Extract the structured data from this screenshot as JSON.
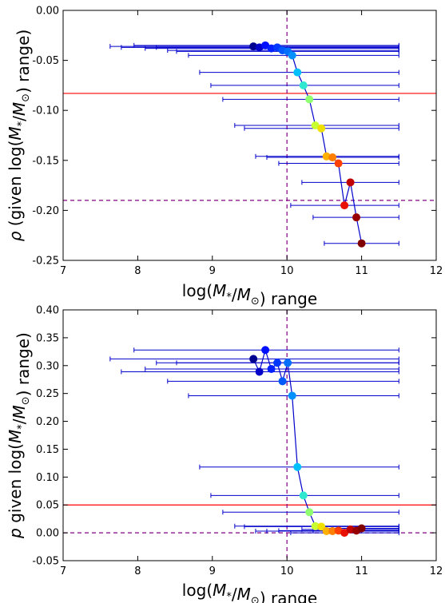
{
  "chart_data": [
    {
      "type": "scatter",
      "xlabel": "log(M_*/M_⊙) range",
      "ylabel": "ρ (given log(M_*/M_⊙) range)",
      "xlim": [
        7,
        12
      ],
      "ylim": [
        -0.25,
        0.0
      ],
      "xticks": [
        "7",
        "8",
        "9",
        "10",
        "11",
        "12"
      ],
      "yticks": [
        "0.00",
        "-0.05",
        "-0.10",
        "-0.15",
        "-0.20",
        "-0.25"
      ],
      "reference_lines": {
        "red_horizontal": -0.083,
        "dashed_horizontal": -0.19,
        "dashed_vertical": 10.0
      },
      "error_bar_upper_x": 11.5,
      "points": [
        {
          "x": 9.55,
          "y": -0.036,
          "xmin": 7.63,
          "color": "#000090"
        },
        {
          "x": 9.63,
          "y": -0.037,
          "xmin": 7.78,
          "color": "#0000c8"
        },
        {
          "x": 9.71,
          "y": -0.035,
          "xmin": 7.95,
          "color": "#0010ff"
        },
        {
          "x": 9.79,
          "y": -0.038,
          "xmin": 8.1,
          "color": "#0020ff"
        },
        {
          "x": 9.87,
          "y": -0.037,
          "xmin": 8.25,
          "color": "#0038ff"
        },
        {
          "x": 9.94,
          "y": -0.04,
          "xmin": 8.4,
          "color": "#0058ff"
        },
        {
          "x": 10.01,
          "y": -0.041,
          "xmin": 8.52,
          "color": "#0070ff"
        },
        {
          "x": 10.07,
          "y": -0.045,
          "xmin": 8.68,
          "color": "#0090ff"
        },
        {
          "x": 10.14,
          "y": -0.062,
          "xmin": 8.83,
          "color": "#00c0ff"
        },
        {
          "x": 10.22,
          "y": -0.075,
          "xmin": 8.98,
          "color": "#30e8d0"
        },
        {
          "x": 10.3,
          "y": -0.089,
          "xmin": 9.14,
          "color": "#90ff70"
        },
        {
          "x": 10.38,
          "y": -0.115,
          "xmin": 9.3,
          "color": "#c8ff30"
        },
        {
          "x": 10.46,
          "y": -0.118,
          "xmin": 9.43,
          "color": "#f0e000"
        },
        {
          "x": 10.53,
          "y": -0.146,
          "xmin": 9.58,
          "color": "#ffb000"
        },
        {
          "x": 10.61,
          "y": -0.147,
          "xmin": 9.73,
          "color": "#ff8000"
        },
        {
          "x": 10.69,
          "y": -0.153,
          "xmin": 9.89,
          "color": "#ff4000"
        },
        {
          "x": 10.77,
          "y": -0.195,
          "xmin": 10.05,
          "color": "#e81000"
        },
        {
          "x": 10.85,
          "y": -0.172,
          "xmin": 10.2,
          "color": "#c00000"
        },
        {
          "x": 10.93,
          "y": -0.207,
          "xmin": 10.35,
          "color": "#980000"
        },
        {
          "x": 11.0,
          "y": -0.233,
          "xmin": 10.5,
          "color": "#800000"
        }
      ]
    },
    {
      "type": "scatter",
      "xlabel": "log(M_*/M_⊙) range",
      "ylabel": "p given log(M_*/M_⊙) range)",
      "xlim": [
        7,
        12
      ],
      "ylim": [
        -0.05,
        0.4
      ],
      "xticks": [
        "7",
        "8",
        "9",
        "10",
        "11",
        "12"
      ],
      "yticks": [
        "0.40",
        "0.35",
        "0.30",
        "0.25",
        "0.20",
        "0.15",
        "0.10",
        "0.05",
        "0.00",
        "-0.05"
      ],
      "reference_lines": {
        "red_horizontal": 0.05,
        "dashed_horizontal": 0.0,
        "dashed_vertical": 10.0
      },
      "error_bar_upper_x": 11.5,
      "points": [
        {
          "x": 9.55,
          "y": 0.312,
          "xmin": 7.63,
          "color": "#000090"
        },
        {
          "x": 9.63,
          "y": 0.289,
          "xmin": 7.78,
          "color": "#0000c8"
        },
        {
          "x": 9.71,
          "y": 0.328,
          "xmin": 7.95,
          "color": "#0010ff"
        },
        {
          "x": 9.79,
          "y": 0.294,
          "xmin": 8.1,
          "color": "#0020ff"
        },
        {
          "x": 9.87,
          "y": 0.305,
          "xmin": 8.25,
          "color": "#0038ff"
        },
        {
          "x": 9.94,
          "y": 0.272,
          "xmin": 8.4,
          "color": "#0058ff"
        },
        {
          "x": 10.01,
          "y": 0.305,
          "xmin": 8.52,
          "color": "#0070ff"
        },
        {
          "x": 10.07,
          "y": 0.246,
          "xmin": 8.68,
          "color": "#0090ff"
        },
        {
          "x": 10.14,
          "y": 0.118,
          "xmin": 8.83,
          "color": "#00c0ff"
        },
        {
          "x": 10.22,
          "y": 0.067,
          "xmin": 8.98,
          "color": "#30e8d0"
        },
        {
          "x": 10.3,
          "y": 0.037,
          "xmin": 9.14,
          "color": "#90ff70"
        },
        {
          "x": 10.38,
          "y": 0.012,
          "xmin": 9.3,
          "color": "#c8ff30"
        },
        {
          "x": 10.46,
          "y": 0.011,
          "xmin": 9.43,
          "color": "#f0e000"
        },
        {
          "x": 10.53,
          "y": 0.003,
          "xmin": 9.58,
          "color": "#ffb000"
        },
        {
          "x": 10.61,
          "y": 0.003,
          "xmin": 9.73,
          "color": "#ff8000"
        },
        {
          "x": 10.69,
          "y": 0.004,
          "xmin": 9.89,
          "color": "#ff4000"
        },
        {
          "x": 10.77,
          "y": 0.0,
          "xmin": 10.05,
          "color": "#e81000"
        },
        {
          "x": 10.85,
          "y": 0.006,
          "xmin": 10.2,
          "color": "#c00000"
        },
        {
          "x": 10.93,
          "y": 0.004,
          "xmin": 10.35,
          "color": "#980000"
        },
        {
          "x": 11.0,
          "y": 0.008,
          "xmin": 10.5,
          "color": "#800000"
        }
      ]
    }
  ],
  "colors": {
    "line": "#0000cc",
    "errorbar": "#0000cc",
    "ref_red": "#ff0000",
    "ref_dashed": "#800080"
  }
}
